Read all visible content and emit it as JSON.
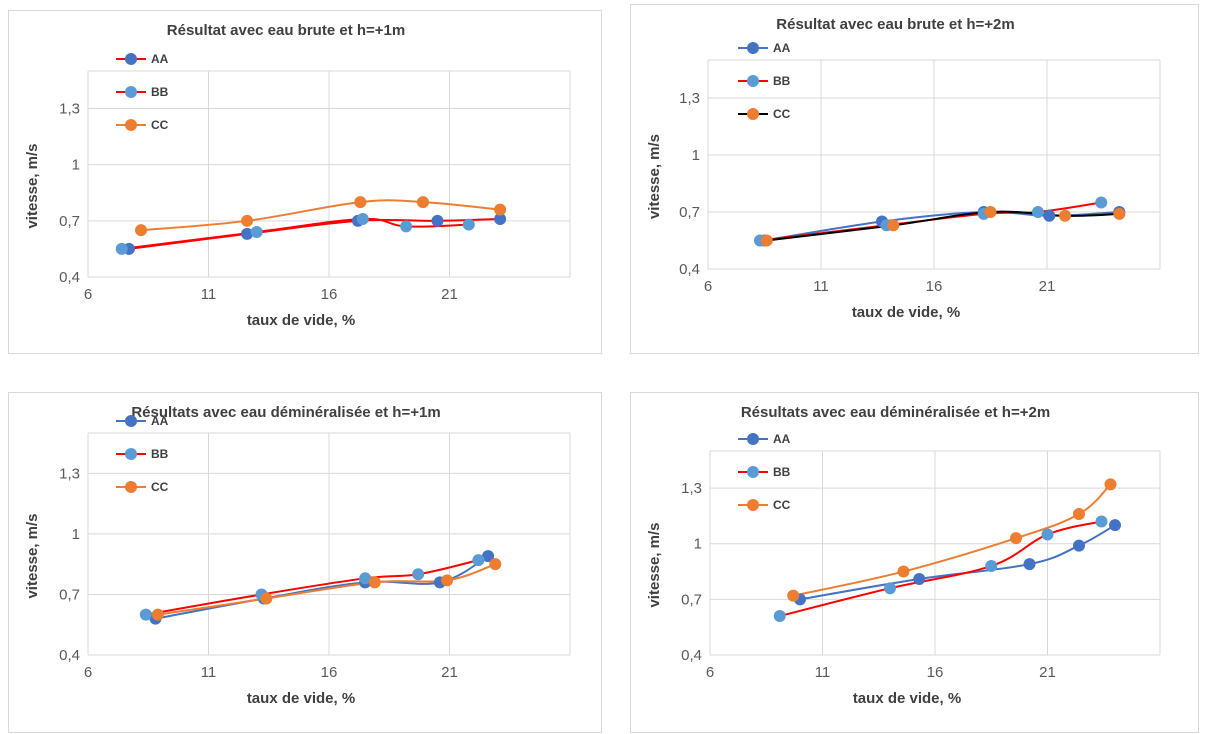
{
  "chart_data": [
    {
      "type": "line",
      "title": "Résultat avec eau  brute  et h=+1m",
      "xlabel": "taux de vide, %",
      "ylabel": "vitesse, m/s",
      "xlim": [
        6,
        26
      ],
      "ylim": [
        0.4,
        1.5
      ],
      "xticks": [
        6,
        11,
        16,
        21
      ],
      "yticks": [
        0.4,
        0.7,
        1,
        1.3
      ],
      "ytick_labels": [
        "0,4",
        "0,7",
        "1",
        "1,3"
      ],
      "grid": true,
      "legend": "top-left",
      "series": [
        {
          "name": "AA",
          "color": "#4472C4",
          "line_color": "#FF0000",
          "x": [
            7.7,
            12.6,
            17.2,
            20.5,
            23.1
          ],
          "y": [
            0.55,
            0.63,
            0.7,
            0.7,
            0.71
          ]
        },
        {
          "name": "BB",
          "color": "#5B9BD5",
          "line_color": "#FF0000",
          "x": [
            7.4,
            13.0,
            17.4,
            19.2,
            21.8
          ],
          "y": [
            0.55,
            0.64,
            0.71,
            0.67,
            0.68
          ]
        },
        {
          "name": "CC",
          "color": "#ED7D31",
          "line_color": "#ED7D31",
          "x": [
            8.2,
            12.6,
            17.3,
            19.9,
            23.1
          ],
          "y": [
            0.65,
            0.7,
            0.8,
            0.8,
            0.76
          ]
        }
      ]
    },
    {
      "type": "line",
      "title": "Résultat avec eau  brute  et h=+2m",
      "xlabel": "taux de vide, %",
      "ylabel": "vitesse, m/s",
      "xlim": [
        6,
        26
      ],
      "ylim": [
        0.4,
        1.5
      ],
      "xticks": [
        6,
        11,
        16,
        21
      ],
      "yticks": [
        0.4,
        0.7,
        1,
        1.3
      ],
      "ytick_labels": [
        "0,4",
        "0,7",
        "1",
        "1,3"
      ],
      "grid": true,
      "legend": "top-left",
      "series": [
        {
          "name": "AA",
          "color": "#4472C4",
          "line_color": "#4472C4",
          "x": [
            8.5,
            13.7,
            18.2,
            21.1,
            24.2
          ],
          "y": [
            0.55,
            0.65,
            0.7,
            0.68,
            0.7
          ]
        },
        {
          "name": "BB",
          "color": "#5B9BD5",
          "line_color": "#FF0000",
          "x": [
            8.3,
            13.9,
            18.2,
            20.6,
            23.4
          ],
          "y": [
            0.55,
            0.63,
            0.69,
            0.7,
            0.75
          ]
        },
        {
          "name": "CC",
          "color": "#ED7D31",
          "line_color": "#000000",
          "x": [
            8.6,
            14.2,
            18.5,
            21.8,
            24.2
          ],
          "y": [
            0.55,
            0.63,
            0.7,
            0.68,
            0.69
          ]
        }
      ]
    },
    {
      "type": "line",
      "title": "Résultats avec eau  déminéralisée et h=+1m",
      "xlabel": "taux de vide, %",
      "ylabel": "vitesse, m/s",
      "xlim": [
        6,
        26
      ],
      "ylim": [
        0.4,
        1.5
      ],
      "xticks": [
        6,
        11,
        16,
        21
      ],
      "yticks": [
        0.4,
        0.7,
        1,
        1.3
      ],
      "ytick_labels": [
        "0,4",
        "0,7",
        "1",
        "1,3"
      ],
      "grid": true,
      "legend": "top-left",
      "series": [
        {
          "name": "AA",
          "color": "#4472C4",
          "line_color": "#4472C4",
          "x": [
            8.8,
            13.3,
            17.5,
            20.6,
            22.6
          ],
          "y": [
            0.58,
            0.68,
            0.76,
            0.76,
            0.89
          ]
        },
        {
          "name": "BB",
          "color": "#5B9BD5",
          "line_color": "#FF0000",
          "x": [
            8.4,
            13.2,
            17.5,
            19.7,
            22.2
          ],
          "y": [
            0.6,
            0.7,
            0.78,
            0.8,
            0.87
          ]
        },
        {
          "name": "CC",
          "color": "#ED7D31",
          "line_color": "#ED7D31",
          "x": [
            8.9,
            13.4,
            17.9,
            20.9,
            22.9
          ],
          "y": [
            0.6,
            0.68,
            0.76,
            0.77,
            0.85
          ]
        }
      ]
    },
    {
      "type": "line",
      "title": "Résultats avec eau  déminéralisée et h=+2m",
      "xlabel": "taux de vide, %",
      "ylabel": "vitesse, m/s",
      "xlim": [
        6,
        26
      ],
      "ylim": [
        0.4,
        1.5
      ],
      "xticks": [
        6,
        11,
        16,
        21
      ],
      "yticks": [
        0.4,
        0.7,
        1,
        1.3
      ],
      "ytick_labels": [
        "0,4",
        "0,7",
        "1",
        "1,3"
      ],
      "grid": true,
      "legend": "top-left",
      "series": [
        {
          "name": "AA",
          "color": "#4472C4",
          "line_color": "#4472C4",
          "x": [
            10.0,
            15.3,
            20.2,
            22.4,
            24.0
          ],
          "y": [
            0.7,
            0.81,
            0.89,
            0.99,
            1.1
          ]
        },
        {
          "name": "BB",
          "color": "#5B9BD5",
          "line_color": "#FF0000",
          "x": [
            9.1,
            14.0,
            18.5,
            21.0,
            23.4
          ],
          "y": [
            0.61,
            0.76,
            0.88,
            1.05,
            1.12
          ]
        },
        {
          "name": "CC",
          "color": "#ED7D31",
          "line_color": "#ED7D31",
          "x": [
            9.7,
            14.6,
            19.6,
            22.4,
            23.8
          ],
          "y": [
            0.72,
            0.85,
            1.03,
            1.16,
            1.32
          ]
        }
      ]
    }
  ]
}
